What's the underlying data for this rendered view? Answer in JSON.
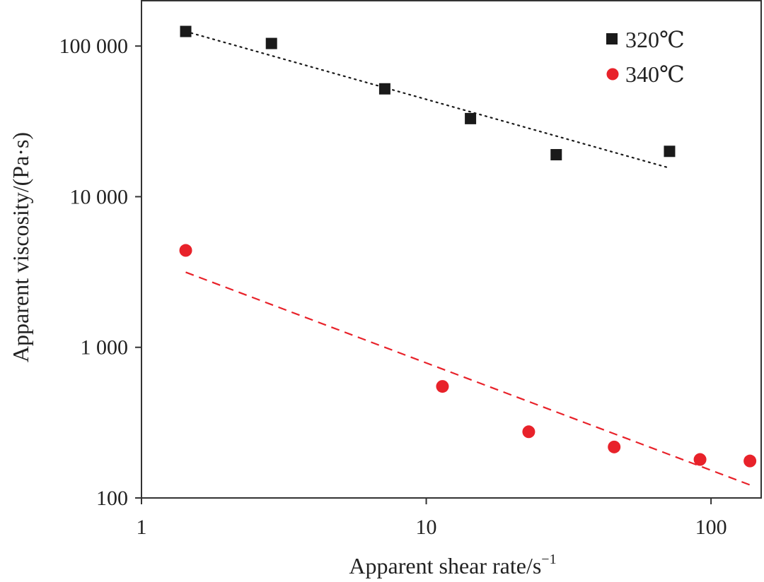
{
  "chart_data": {
    "type": "scatter",
    "xscale": "log",
    "yscale": "log",
    "xlim": [
      1,
      150
    ],
    "ylim": [
      100,
      200000
    ],
    "xlabel": "Apparent shear rate/s",
    "xlabel_sup": "−1",
    "ylabel": "Apparent viscosity/(Pa·s)",
    "x_ticks": [
      {
        "value": 1,
        "label": "1"
      },
      {
        "value": 10,
        "label": "10"
      },
      {
        "value": 100,
        "label": "100"
      }
    ],
    "y_ticks": [
      {
        "value": 100,
        "label": "100"
      },
      {
        "value": 1000,
        "label": "1 000"
      },
      {
        "value": 10000,
        "label": "10 000"
      },
      {
        "value": 100000,
        "label": "100 000"
      }
    ],
    "legend_position": "top-right",
    "series": [
      {
        "name": "320℃",
        "marker": "square",
        "color": "#1a1a1a",
        "x": [
          1.43,
          2.86,
          7.15,
          14.3,
          28.6,
          71.5
        ],
        "y": [
          125000,
          104000,
          52000,
          33000,
          19000,
          20000
        ],
        "trend": {
          "style": "dotted",
          "x": [
            1.43,
            71.5
          ],
          "y": [
            125000,
            15500
          ]
        }
      },
      {
        "name": "340℃",
        "marker": "circle",
        "color": "#e8222a",
        "x": [
          1.43,
          11.4,
          22.9,
          45.7,
          91.5,
          137
        ],
        "y": [
          4400,
          550,
          275,
          218,
          180,
          176
        ],
        "trend": {
          "style": "dashed",
          "x": [
            1.43,
            137
          ],
          "y": [
            3150,
            122
          ]
        }
      }
    ]
  }
}
